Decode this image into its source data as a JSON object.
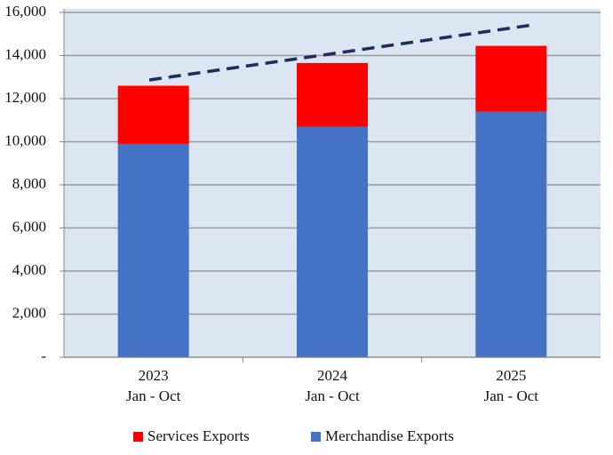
{
  "chart_data": {
    "type": "stacked-bar",
    "categories": [
      [
        "2023",
        "Jan - Oct"
      ],
      [
        "2024",
        "Jan - Oct"
      ],
      [
        "2025",
        "Jan - Oct"
      ]
    ],
    "series": [
      {
        "name": "Merchandise Exports",
        "color": "#4472c4",
        "values": [
          9900,
          10700,
          11400
        ]
      },
      {
        "name": "Services Exports",
        "color": "#ff0000",
        "values": [
          2700,
          2950,
          3050
        ]
      }
    ],
    "ylim": [
      0,
      16000
    ],
    "yticks": [
      {
        "value": 0,
        "label": "-"
      },
      {
        "value": 2000,
        "label": "2,000"
      },
      {
        "value": 4000,
        "label": "4,000"
      },
      {
        "value": 6000,
        "label": "6,000"
      },
      {
        "value": 8000,
        "label": "8,000"
      },
      {
        "value": 10000,
        "label": "10,000"
      },
      {
        "value": 12000,
        "label": "12,000"
      },
      {
        "value": 14000,
        "label": "14,000"
      },
      {
        "value": 16000,
        "label": "16,000"
      }
    ],
    "grid": true
  }
}
